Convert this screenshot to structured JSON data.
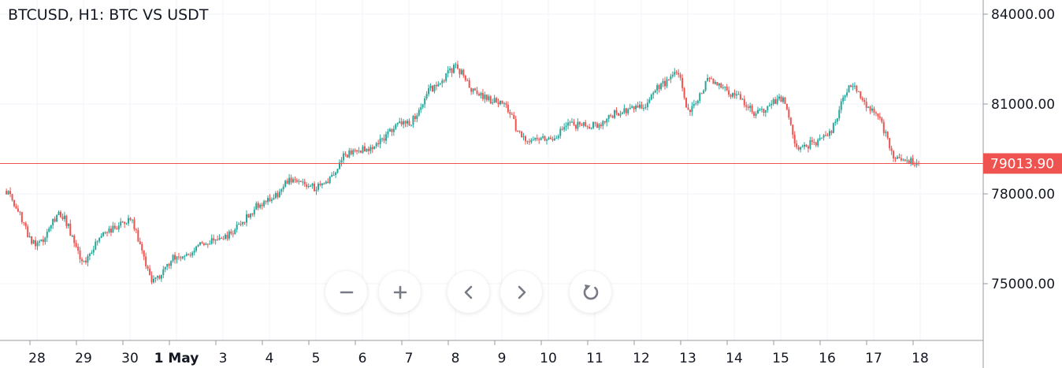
{
  "header": {
    "title": "BTCUSD, H1: BTC VS USDT"
  },
  "colors": {
    "up": "#26a69a",
    "down": "#ef5350",
    "price_line": "#ef5350",
    "grid": "#f0f3fa",
    "axis": "#9598a1"
  },
  "controls": [
    {
      "name": "zoom-out-button",
      "icon": "minus-icon"
    },
    {
      "name": "zoom-in-button",
      "icon": "plus-icon"
    },
    {
      "name": "scroll-left-button",
      "icon": "chevron-left-icon"
    },
    {
      "name": "scroll-right-button",
      "icon": "chevron-right-icon"
    },
    {
      "name": "reset-button",
      "icon": "reset-icon"
    }
  ],
  "chart_data": {
    "type": "candlestick",
    "title": "BTCUSD, H1: BTC VS USDT",
    "interval": "H1",
    "x_tick_labels": [
      "28",
      "29",
      "30",
      "1 May",
      "3",
      "4",
      "5",
      "6",
      "7",
      "8",
      "9",
      "10",
      "11",
      "12",
      "13",
      "14",
      "15",
      "16",
      "17",
      "18"
    ],
    "y_tick_labels": [
      "84000.00",
      "81000.00",
      "78000.00",
      "75000.00"
    ],
    "ylim": [
      73300,
      84300
    ],
    "last_price": 79013.9,
    "last_price_label": "79013.90",
    "series": [
      {
        "name": "BTCUSD",
        "x": [
          27.3,
          28.0,
          28.5,
          29.0,
          29.5,
          30.0,
          30.5,
          31.0,
          32.0,
          33.0,
          33.5,
          34.0,
          34.4,
          34.6,
          35.0,
          36.0,
          36.5,
          37.0,
          37.5,
          38.0,
          38.5,
          39.0,
          39.5,
          40.0,
          40.5,
          41.0,
          41.5,
          41.8,
          42.0,
          42.5,
          43.0,
          43.5,
          44.0,
          44.4,
          44.7,
          45.0,
          45.5,
          46.0,
          46.5,
          47.0
        ],
        "values": [
          78100,
          76300,
          77300,
          75800,
          76800,
          77100,
          75100,
          75900,
          76600,
          77800,
          78500,
          78200,
          78600,
          79300,
          79500,
          80400,
          81500,
          82200,
          81300,
          81000,
          79800,
          79800,
          80300,
          80300,
          80700,
          80900,
          81700,
          82100,
          80800,
          81800,
          81300,
          80700,
          81200,
          79500,
          79700,
          80000,
          81600,
          80800,
          79200,
          79000
        ]
      }
    ]
  }
}
